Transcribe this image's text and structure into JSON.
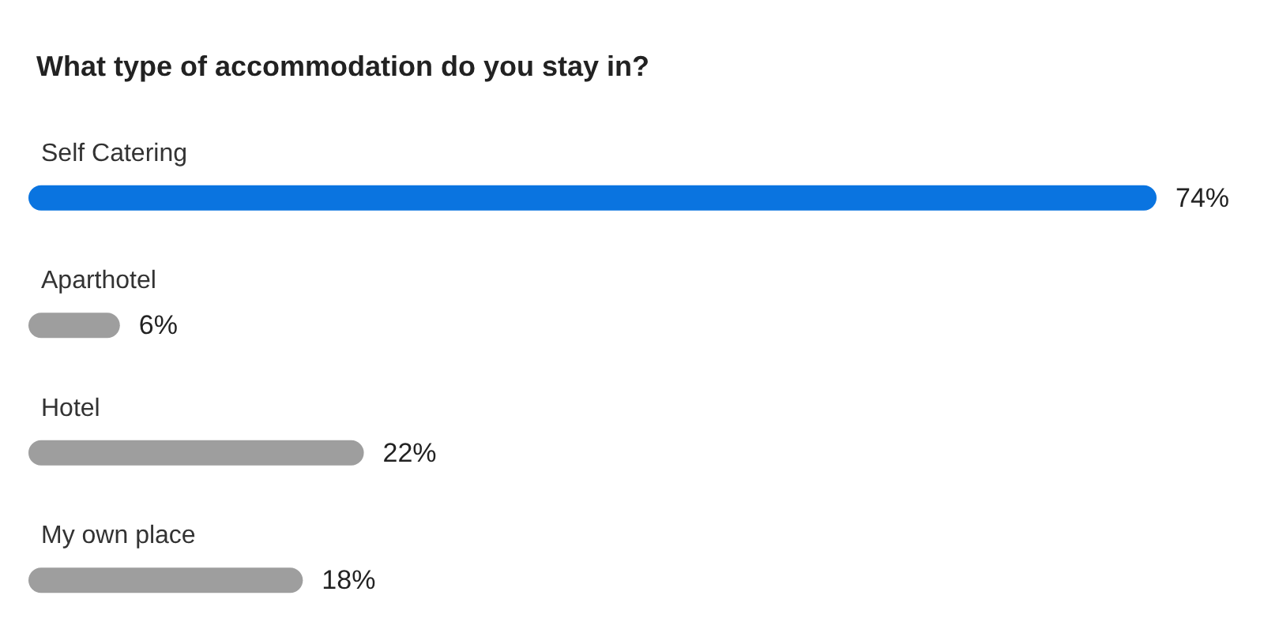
{
  "chart_data": {
    "type": "bar",
    "orientation": "horizontal",
    "tick_labels": false,
    "title": "What type of accommodation do you stay in?",
    "categories": [
      "Self Catering",
      "Aparthotel",
      "Hotel",
      "My own place"
    ],
    "values": [
      74,
      6,
      22,
      18
    ],
    "value_labels": [
      "74%",
      "6%",
      "22%",
      "18%"
    ],
    "colors": [
      "#0a74e0",
      "#9e9e9e",
      "#9e9e9e",
      "#9e9e9e"
    ]
  }
}
